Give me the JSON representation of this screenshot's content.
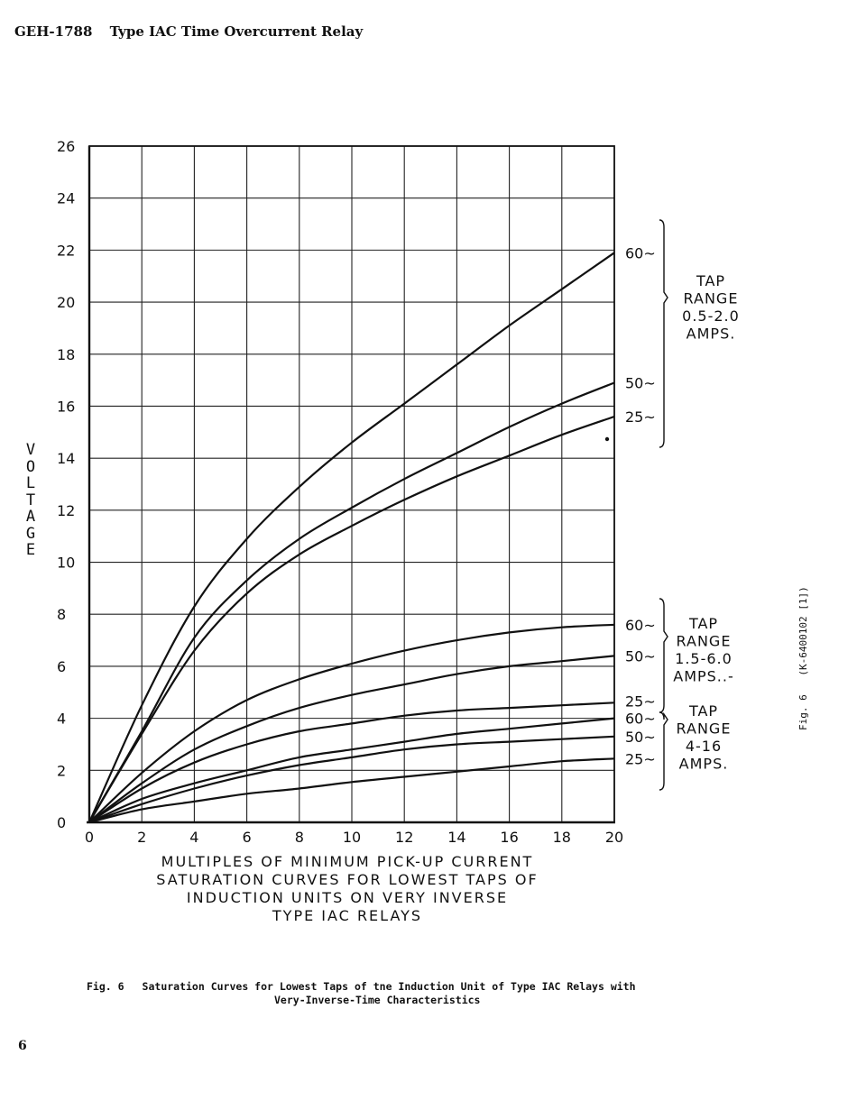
{
  "header": {
    "doc_number": "GEH-1788",
    "doc_title": "Type IAC Time Overcurrent Relay"
  },
  "chart_data": {
    "type": "line",
    "ylabel": "VOLTAGE",
    "xlabel": "MULTIPLES OF MINIMUM PICK-UP CURRENT",
    "caption_lines": [
      "MULTIPLES OF MINIMUM PICK-UP CURRENT",
      "SATURATION CURVES FOR LOWEST TAPS OF",
      "INDUCTION UNITS ON VERY INVERSE",
      "TYPE IAC RELAYS"
    ],
    "xlim": [
      0,
      20
    ],
    "ylim": [
      0,
      26
    ],
    "x_ticks": [
      0,
      2,
      4,
      6,
      8,
      10,
      12,
      14,
      16,
      18,
      20
    ],
    "y_ticks": [
      0,
      2,
      4,
      6,
      8,
      10,
      12,
      14,
      16,
      18,
      20,
      22,
      24,
      26
    ],
    "grid": true,
    "x": [
      0,
      2,
      4,
      6,
      8,
      10,
      12,
      14,
      16,
      18,
      20
    ],
    "series": [
      {
        "name": "60~",
        "group": "TAP RANGE 0.5-2.0 AMPS.",
        "values": [
          0,
          4.5,
          8.3,
          10.9,
          12.9,
          14.6,
          16.1,
          17.6,
          19.1,
          20.5,
          21.9
        ]
      },
      {
        "name": "50~",
        "group": "TAP RANGE 0.5-2.0 AMPS.",
        "values": [
          0,
          3.5,
          7.1,
          9.3,
          10.9,
          12.1,
          13.2,
          14.2,
          15.2,
          16.1,
          16.9
        ]
      },
      {
        "name": "25~",
        "group": "TAP RANGE 0.5-2.0 AMPS.",
        "values": [
          0,
          3.4,
          6.6,
          8.8,
          10.3,
          11.4,
          12.4,
          13.3,
          14.1,
          14.9,
          15.6
        ]
      },
      {
        "name": "60~",
        "group": "TAP RANGE 1.5-6.0 AMPS.",
        "values": [
          0,
          1.9,
          3.5,
          4.7,
          5.5,
          6.1,
          6.6,
          7.0,
          7.3,
          7.5,
          7.6
        ]
      },
      {
        "name": "50~",
        "group": "TAP RANGE 1.5-6.0 AMPS.",
        "values": [
          0,
          1.5,
          2.8,
          3.7,
          4.4,
          4.9,
          5.3,
          5.7,
          6.0,
          6.2,
          6.4
        ]
      },
      {
        "name": "25~",
        "group": "TAP RANGE 1.5-6.0 AMPS.",
        "values": [
          0,
          1.3,
          2.3,
          3.0,
          3.5,
          3.8,
          4.1,
          4.3,
          4.4,
          4.5,
          4.6
        ]
      },
      {
        "name": "60~",
        "group": "TAP RANGE 4-16 AMPS.",
        "values": [
          0,
          0.9,
          1.5,
          2.0,
          2.5,
          2.8,
          3.1,
          3.4,
          3.6,
          3.8,
          4.0
        ]
      },
      {
        "name": "50~",
        "group": "TAP RANGE 4-16 AMPS.",
        "values": [
          0,
          0.7,
          1.3,
          1.8,
          2.2,
          2.5,
          2.8,
          3.0,
          3.1,
          3.2,
          3.3
        ]
      },
      {
        "name": "25~",
        "group": "TAP RANGE 4-16 AMPS.",
        "values": [
          0,
          0.5,
          0.8,
          1.1,
          1.3,
          1.55,
          1.75,
          1.95,
          2.15,
          2.35,
          2.45
        ]
      }
    ],
    "groups": [
      {
        "lines": [
          "TAP",
          "RANGE",
          "0.5-2.0",
          "AMPS."
        ]
      },
      {
        "lines": [
          "TAP",
          "RANGE",
          "1.5-6.0",
          "AMPS..-"
        ]
      },
      {
        "lines": [
          "TAP",
          "RANGE",
          "4-16",
          "AMPS."
        ]
      }
    ]
  },
  "figure_caption": {
    "label": "Fig. 6",
    "line1": "Saturation Curves for Lowest Taps of tne Induction Unit of Type IAC Relays with",
    "line2": "Very-Inverse-Time Characteristics"
  },
  "page_number": "6",
  "side_reference": {
    "label": "Fig. 6",
    "code": "(K-6400102 [1])"
  }
}
